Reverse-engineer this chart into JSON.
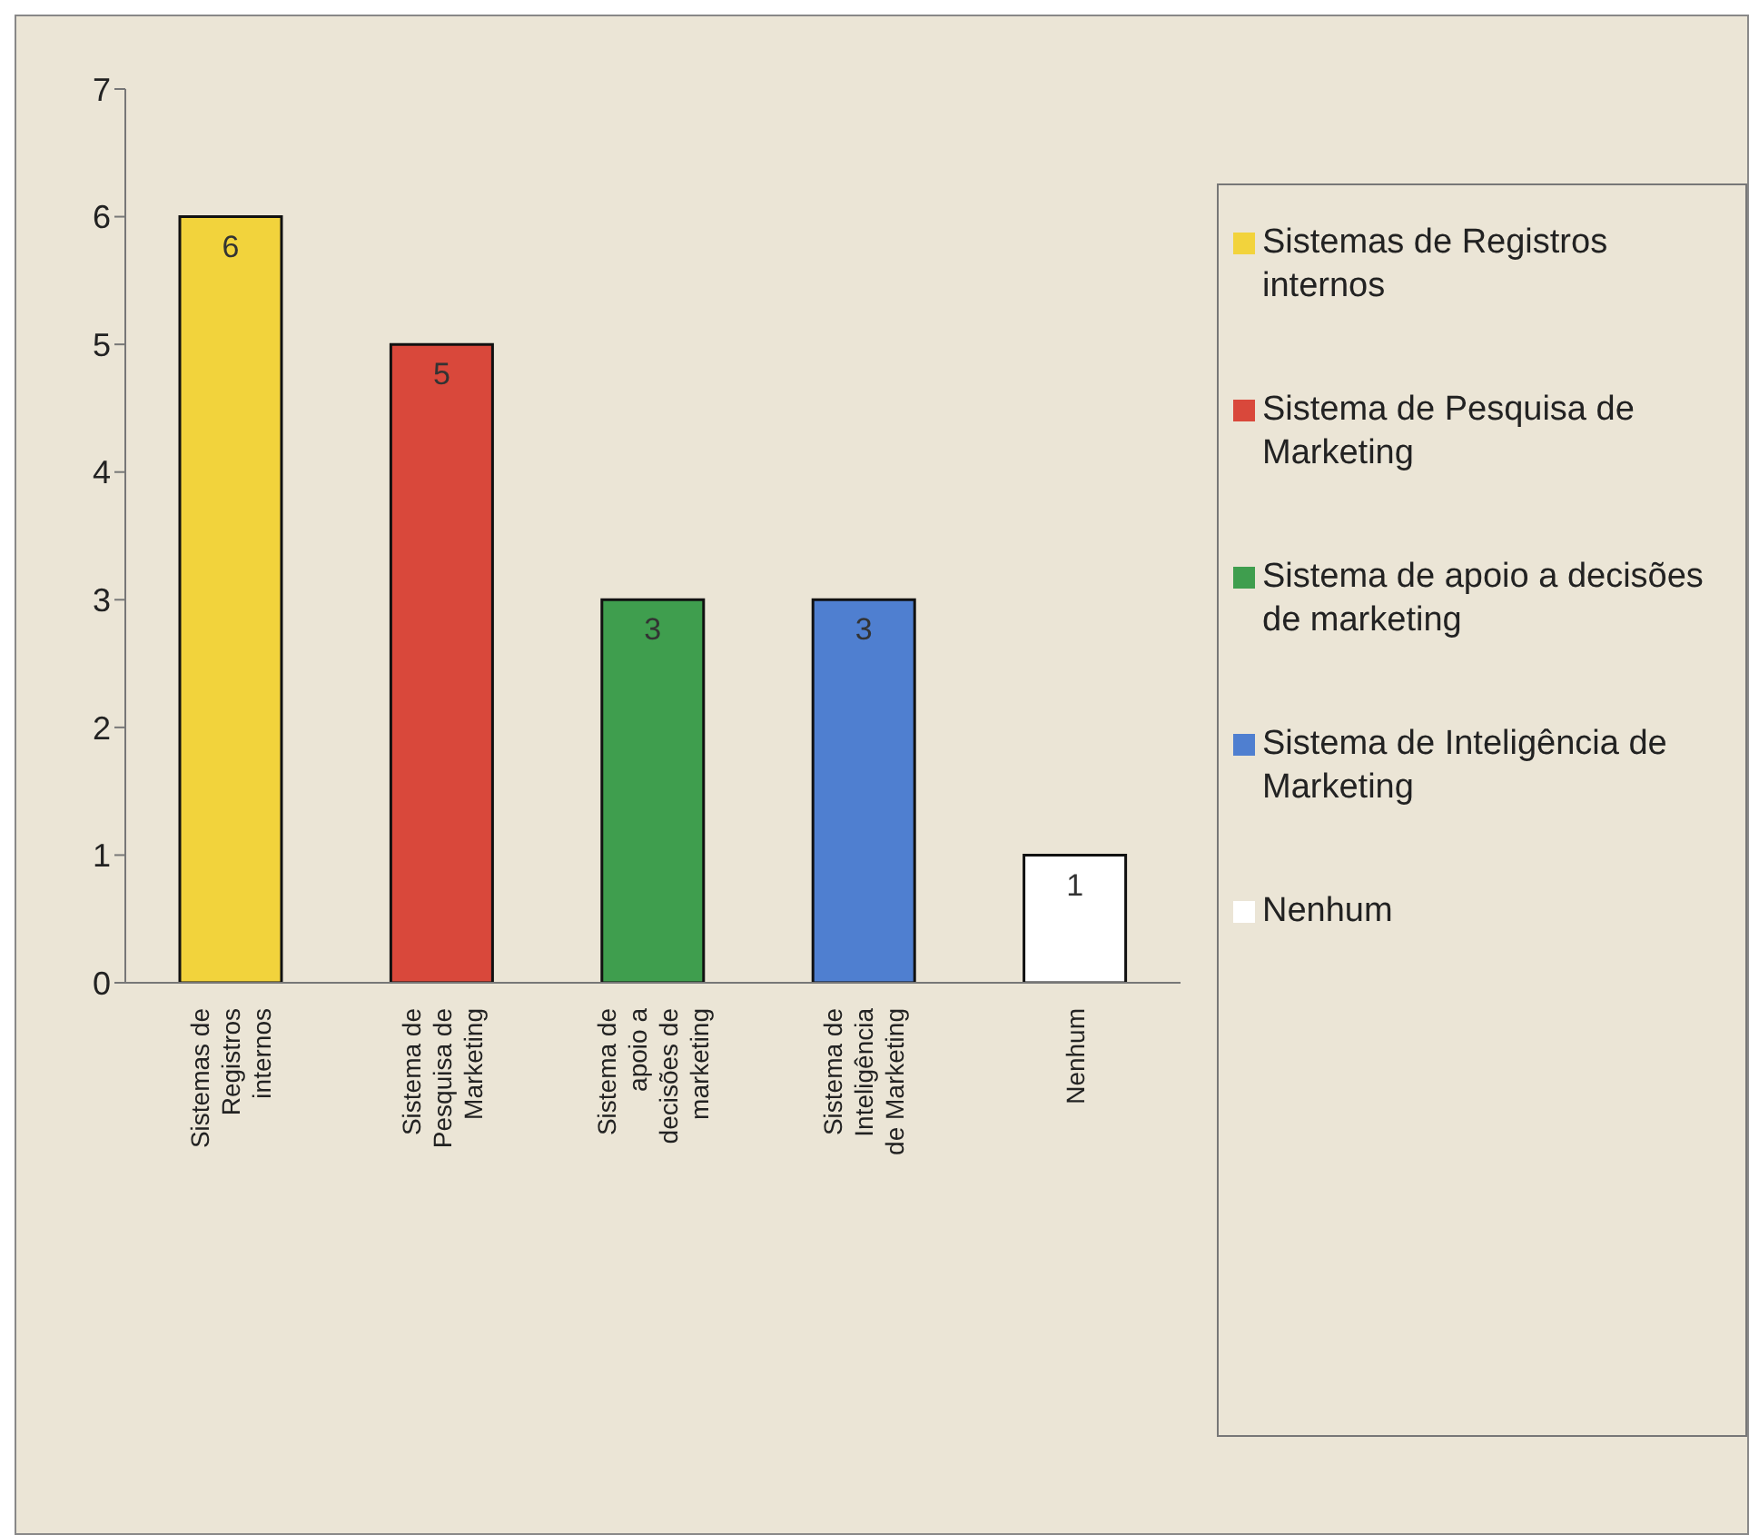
{
  "chart_data": {
    "type": "bar",
    "categories": [
      "Sistemas de Registros internos",
      "Sistema de Pesquisa de Marketing",
      "Sistema de apoio a decisões de marketing",
      "Sistema de Inteligência de Marketing",
      "Nenhum"
    ],
    "series": [
      {
        "name": "Sistemas de Registros internos",
        "color": "#f2d33c",
        "values": [
          6,
          null,
          null,
          null,
          null
        ]
      },
      {
        "name": "Sistema de Pesquisa de Marketing",
        "color": "#d9483b",
        "values": [
          null,
          5,
          null,
          null,
          null
        ]
      },
      {
        "name": "Sistema de apoio a decisões de marketing",
        "color": "#3f9e4e",
        "values": [
          null,
          null,
          3,
          null,
          null
        ]
      },
      {
        "name": "Sistema de Inteligência de Marketing",
        "color": "#4f7fd0",
        "values": [
          null,
          null,
          null,
          3,
          null
        ]
      },
      {
        "name": "Nenhum",
        "color": "#ffffff",
        "values": [
          null,
          null,
          null,
          null,
          1
        ]
      }
    ],
    "ylim": [
      0,
      7
    ],
    "yticks": [
      0,
      1,
      2,
      3,
      4,
      5,
      6,
      7
    ],
    "grid": false,
    "legend": "right",
    "data_labels": true
  }
}
